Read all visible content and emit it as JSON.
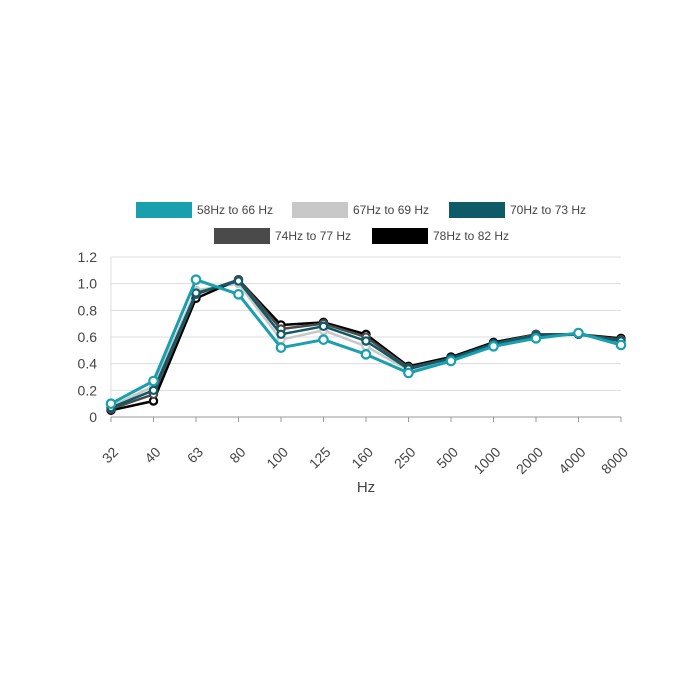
{
  "chart_data": {
    "type": "line",
    "title": "",
    "xlabel": "Hz",
    "ylabel": "",
    "ylim": [
      0,
      1.2
    ],
    "yticks": [
      0,
      0.2,
      0.4,
      0.6,
      0.8,
      1.0,
      1.2
    ],
    "ytick_labels": [
      "0",
      "0.2",
      "0.4",
      "0.6",
      "0.8",
      "1.0",
      "1.2"
    ],
    "categories": [
      "32",
      "40",
      "63",
      "80",
      "100",
      "125",
      "160",
      "250",
      "500",
      "1000",
      "2000",
      "4000",
      "8000"
    ],
    "grid": true,
    "legend_position": "top",
    "series": [
      {
        "name": "58Hz to 66 Hz",
        "color": "#1a9fae",
        "values": [
          0.1,
          0.27,
          1.03,
          0.92,
          0.52,
          0.58,
          0.47,
          0.33,
          0.42,
          0.53,
          0.59,
          0.63,
          0.54
        ]
      },
      {
        "name": "67Hz to 69 Hz",
        "color": "#c8c8c8",
        "values": [
          0.08,
          0.23,
          0.95,
          1.0,
          0.58,
          0.65,
          0.53,
          0.35,
          0.43,
          0.55,
          0.6,
          0.62,
          0.56
        ]
      },
      {
        "name": "70Hz to 73 Hz",
        "color": "#0e5a66",
        "values": [
          0.07,
          0.2,
          0.93,
          1.02,
          0.62,
          0.68,
          0.57,
          0.36,
          0.44,
          0.55,
          0.61,
          0.62,
          0.57
        ]
      },
      {
        "name": "74Hz to 77 Hz",
        "color": "#4a4a4a",
        "values": [
          0.06,
          0.17,
          0.92,
          1.03,
          0.66,
          0.7,
          0.6,
          0.37,
          0.44,
          0.55,
          0.62,
          0.62,
          0.58
        ]
      },
      {
        "name": "78Hz to 82 Hz",
        "color": "#000000",
        "values": [
          0.05,
          0.12,
          0.89,
          1.03,
          0.69,
          0.71,
          0.62,
          0.38,
          0.45,
          0.56,
          0.62,
          0.62,
          0.59
        ]
      }
    ]
  }
}
